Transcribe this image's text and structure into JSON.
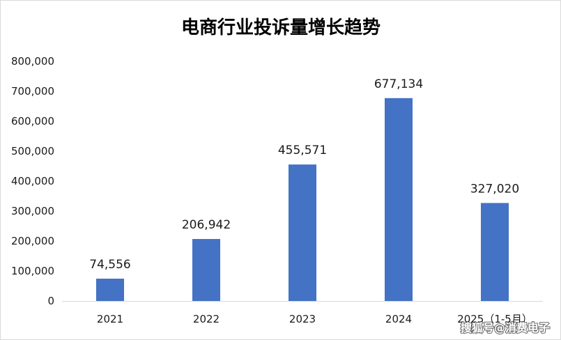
{
  "watermark": "搜狐号@消费电子",
  "chart_data": {
    "type": "bar",
    "title": "电商行业投诉量增长趋势",
    "categories": [
      "2021",
      "2022",
      "2023",
      "2024",
      "2025（1-5月）"
    ],
    "values": [
      74556,
      206942,
      455571,
      677134,
      327020
    ],
    "yticks": [
      0,
      100000,
      200000,
      300000,
      400000,
      500000,
      600000,
      700000,
      800000
    ],
    "ylim": [
      0,
      800000
    ],
    "grid": false,
    "legend": "none",
    "bar_color": "#4472C4",
    "axis_color": "#d9d9d9"
  }
}
